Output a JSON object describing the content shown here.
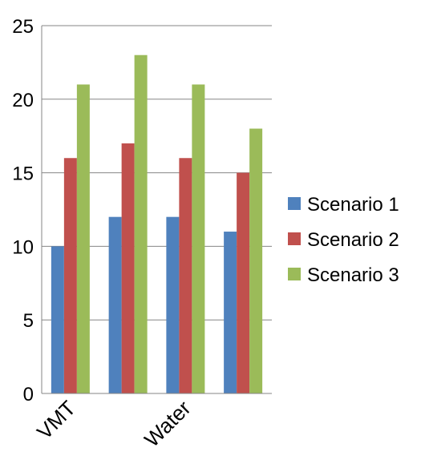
{
  "chart_data": {
    "type": "bar",
    "title": "",
    "xlabel": "",
    "ylabel": "",
    "categories": [
      "VMT",
      "",
      "Water",
      ""
    ],
    "series": [
      {
        "name": "Scenario 1",
        "color": "#4F81BD",
        "values": [
          10,
          12,
          12,
          11
        ]
      },
      {
        "name": "Scenario 2",
        "color": "#C0504D",
        "values": [
          16,
          17,
          16,
          15
        ]
      },
      {
        "name": "Scenario 3",
        "color": "#9BBB59",
        "values": [
          21,
          23,
          21,
          18
        ]
      }
    ],
    "ylim": [
      0,
      25
    ],
    "yticks": [
      "0",
      "5",
      "10",
      "15",
      "20",
      "25"
    ],
    "grid": true,
    "legend_position": "right"
  }
}
